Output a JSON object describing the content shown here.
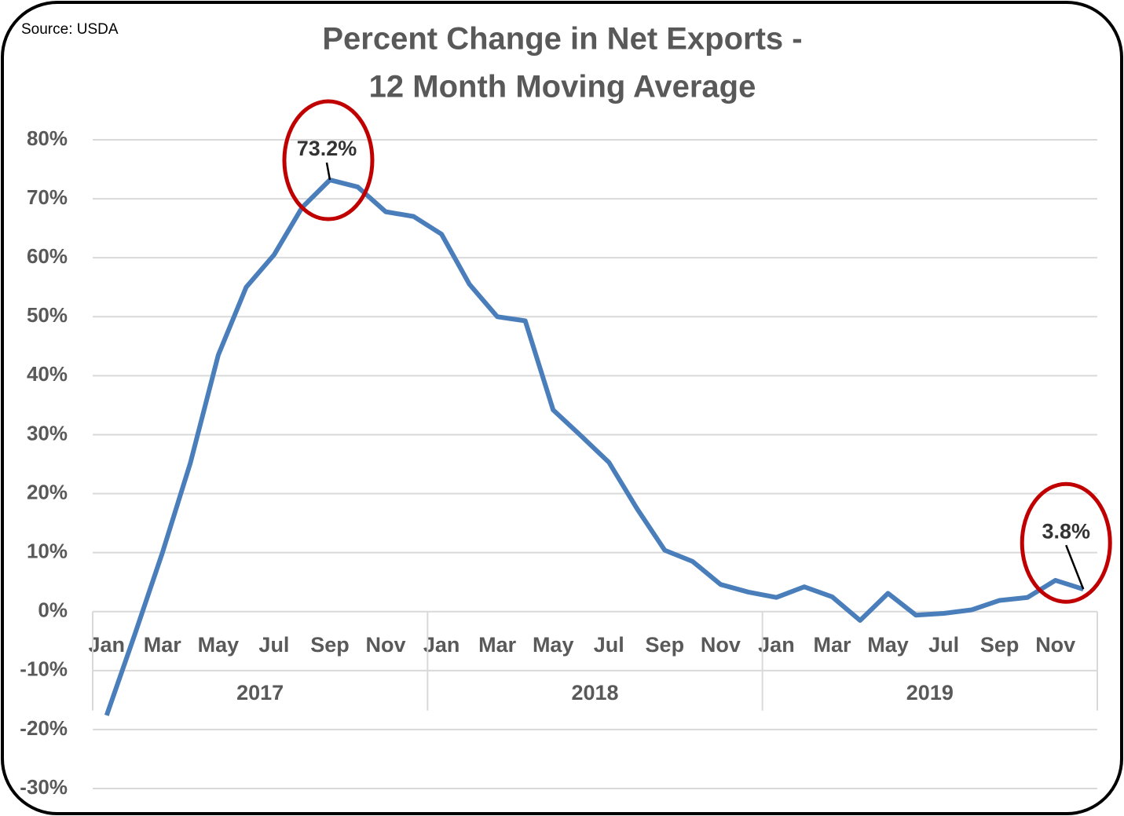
{
  "source": "Source: USDA",
  "chart_data": {
    "type": "line",
    "title": [
      "Percent Change in Net Exports -",
      "12 Month Moving Average"
    ],
    "categories": [
      "Jan",
      null,
      "Mar",
      null,
      "May",
      null,
      "Jul",
      null,
      "Sep",
      null,
      "Nov",
      null,
      "Jan",
      null,
      "Mar",
      null,
      "May",
      null,
      "Jul",
      null,
      "Sep",
      null,
      "Nov",
      null,
      "Jan",
      null,
      "Mar",
      null,
      "May",
      null,
      "Jul",
      null,
      "Sep",
      null,
      "Nov",
      null
    ],
    "year_groups": [
      "2017",
      "2018",
      "2019"
    ],
    "series": [
      {
        "name": "Percent Change in Net Exports",
        "color": "#4a7ebb",
        "values": [
          -17.6,
          -4,
          10,
          25.2,
          43.5,
          55,
          60.5,
          68.5,
          73.2,
          72,
          67.8,
          67,
          64,
          55.5,
          50,
          49.3,
          34.2,
          29.8,
          25.3,
          17.5,
          10.4,
          8.5,
          4.6,
          3.3,
          2.4,
          4.2,
          2.5,
          -1.5,
          3.1,
          -0.6,
          -0.3,
          0.3,
          1.9,
          2.4,
          5.3,
          3.8
        ]
      }
    ],
    "value_labels": [
      null,
      null,
      null,
      null,
      null,
      null,
      null,
      null,
      "73.2%",
      null,
      null,
      null,
      null,
      null,
      null,
      null,
      null,
      null,
      null,
      null,
      null,
      null,
      null,
      null,
      null,
      null,
      null,
      null,
      null,
      null,
      null,
      null,
      null,
      null,
      null,
      "3.8%"
    ],
    "ylim": [
      -30,
      80
    ],
    "yticks": [
      {
        "value": -30,
        "label": "-30%"
      },
      {
        "value": -20,
        "label": "-20%"
      },
      {
        "value": -10,
        "label": "-10%"
      },
      {
        "value": 0,
        "label": "0%"
      },
      {
        "value": 10,
        "label": "10%"
      },
      {
        "value": 20,
        "label": "20%"
      },
      {
        "value": 30,
        "label": "30%"
      },
      {
        "value": 40,
        "label": "40%"
      },
      {
        "value": 50,
        "label": "50%"
      },
      {
        "value": 60,
        "label": "60%"
      },
      {
        "value": 70,
        "label": "70%"
      },
      {
        "value": 80,
        "label": "80%"
      }
    ],
    "grid": true
  }
}
